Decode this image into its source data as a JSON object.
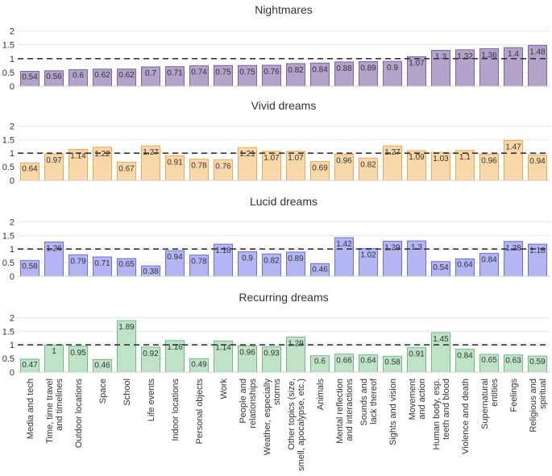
{
  "categories": [
    "Media and tech",
    "Time, time travel and timelines",
    "Outdoor locations",
    "Space",
    "School",
    "Life events",
    "Indoor locations",
    "Personal objects",
    "Work",
    "People and relationships",
    "Weather, especially storms",
    "Other topics (size, smell, apocalypse, etc.)",
    "Animals",
    "Mental reflection and interactions",
    "Sounds and lack thereof",
    "Sights and vision",
    "Movement and action",
    "Human body, esp. teeth and blood",
    "Violence and death",
    "Supernatural entities",
    "Feelings",
    "Religious and spiritual"
  ],
  "category_label_lines": [
    [
      "Media and tech"
    ],
    [
      "Time, time travel",
      "and timelines"
    ],
    [
      "Outdoor locations"
    ],
    [
      "Space"
    ],
    [
      "School"
    ],
    [
      "Life events"
    ],
    [
      "Indoor locations"
    ],
    [
      "Personal objects"
    ],
    [
      "Work"
    ],
    [
      "People and",
      "relationships"
    ],
    [
      "Weather, especially",
      "storms"
    ],
    [
      "Other topics (size,",
      "smell, apocalypse, etc.)"
    ],
    [
      "Animals"
    ],
    [
      "Mental reflection",
      "and interactions"
    ],
    [
      "Sounds and",
      "lack thereof"
    ],
    [
      "Sights and vision"
    ],
    [
      "Movement",
      "and action"
    ],
    [
      "Human body, esp.",
      "teeth and blood"
    ],
    [
      "Violence and death"
    ],
    [
      "Supernatural",
      "entities"
    ],
    [
      "Feelings"
    ],
    [
      "Religious and",
      "spiritual"
    ]
  ],
  "y_ticks": [
    0,
    0.5,
    1,
    1.5,
    2
  ],
  "y_tick_labels": [
    "0",
    "0.5",
    "1",
    "1.5",
    "2"
  ],
  "colors": {
    "grid": "#e6e6e6",
    "reference_line": "#333344",
    "text": "#333333"
  },
  "chart_data": [
    {
      "type": "bar",
      "title": "Nightmares",
      "ylim": [
        0,
        2.25
      ],
      "reference_line": 1,
      "fill": "#b3a3cb",
      "stroke": "#7e63a6",
      "values": [
        0.54,
        0.56,
        0.6,
        0.62,
        0.62,
        0.7,
        0.71,
        0.74,
        0.75,
        0.75,
        0.76,
        0.82,
        0.84,
        0.88,
        0.89,
        0.9,
        1.07,
        1.3,
        1.32,
        1.36,
        1.4,
        1.48
      ],
      "labels": [
        "0.54",
        "0.56",
        "0.6",
        "0.62",
        "0.62",
        "0.7",
        "0.71",
        "0.74",
        "0.75",
        "0.75",
        "0.76",
        "0.82",
        "0.84",
        "0.88",
        "0.89",
        "0.9",
        "1.07",
        "1.3",
        "1.32",
        "1.36",
        "1.4",
        "1.48"
      ]
    },
    {
      "type": "bar",
      "title": "Vivid dreams",
      "ylim": [
        0,
        2.25
      ],
      "reference_line": 1,
      "fill": "#f8d7a9",
      "stroke": "#f0a850",
      "values": [
        0.64,
        0.97,
        1.14,
        1.22,
        0.67,
        1.27,
        0.91,
        0.78,
        0.76,
        1.21,
        1.07,
        1.07,
        0.69,
        0.96,
        0.82,
        1.27,
        1.09,
        1.03,
        1.1,
        0.96,
        1.47,
        0.94
      ],
      "labels": [
        "0.64",
        "0.97",
        "1.14",
        "1.22",
        "0.67",
        "1.27",
        "0.91",
        "0.78",
        "0.76",
        "1.21",
        "1.07",
        "1.07",
        "0.69",
        "0.96",
        "0.82",
        "1.27",
        "1.09",
        "1.03",
        "1.1",
        "0.96",
        "1.47",
        "0.94"
      ]
    },
    {
      "type": "bar",
      "title": "Lucid dreams",
      "ylim": [
        0,
        2.25
      ],
      "reference_line": 1,
      "fill": "#b4b5f3",
      "stroke": "#6f6ce6",
      "values": [
        0.58,
        1.26,
        0.79,
        0.71,
        0.65,
        0.38,
        0.94,
        0.78,
        1.18,
        0.9,
        0.82,
        0.89,
        0.46,
        1.42,
        1.02,
        1.29,
        1.3,
        0.54,
        0.64,
        0.84,
        1.28,
        1.18
      ],
      "labels": [
        "0.58",
        "1.26",
        "0.79",
        "0.71",
        "0.65",
        "0.38",
        "0.94",
        "0.78",
        "1.18",
        "0.9",
        "0.82",
        "0.89",
        "0.46",
        "1.42",
        "1.02",
        "1.29",
        "1.3",
        "0.54",
        "0.64",
        "0.84",
        "1.28",
        "1.18"
      ]
    },
    {
      "type": "bar",
      "title": "Recurring dreams",
      "ylim": [
        0,
        2.25
      ],
      "reference_line": 1,
      "fill": "#bfe3c6",
      "stroke": "#6fbf7f",
      "values": [
        0.47,
        1,
        0.95,
        0.46,
        1.89,
        0.92,
        1.16,
        0.49,
        1.14,
        0.96,
        0.93,
        1.29,
        0.6,
        0.66,
        0.64,
        0.58,
        0.91,
        1.45,
        0.84,
        0.65,
        0.63,
        0.59
      ],
      "labels": [
        "0.47",
        "1",
        "0.95",
        "0.46",
        "1.89",
        "0.92",
        "1.16",
        "0.49",
        "1.14",
        "0.96",
        "0.93",
        "1.29",
        "0.6",
        "0.66",
        "0.64",
        "0.58",
        "0.91",
        "1.45",
        "0.84",
        "0.65",
        "0.63",
        "0.59"
      ]
    }
  ]
}
